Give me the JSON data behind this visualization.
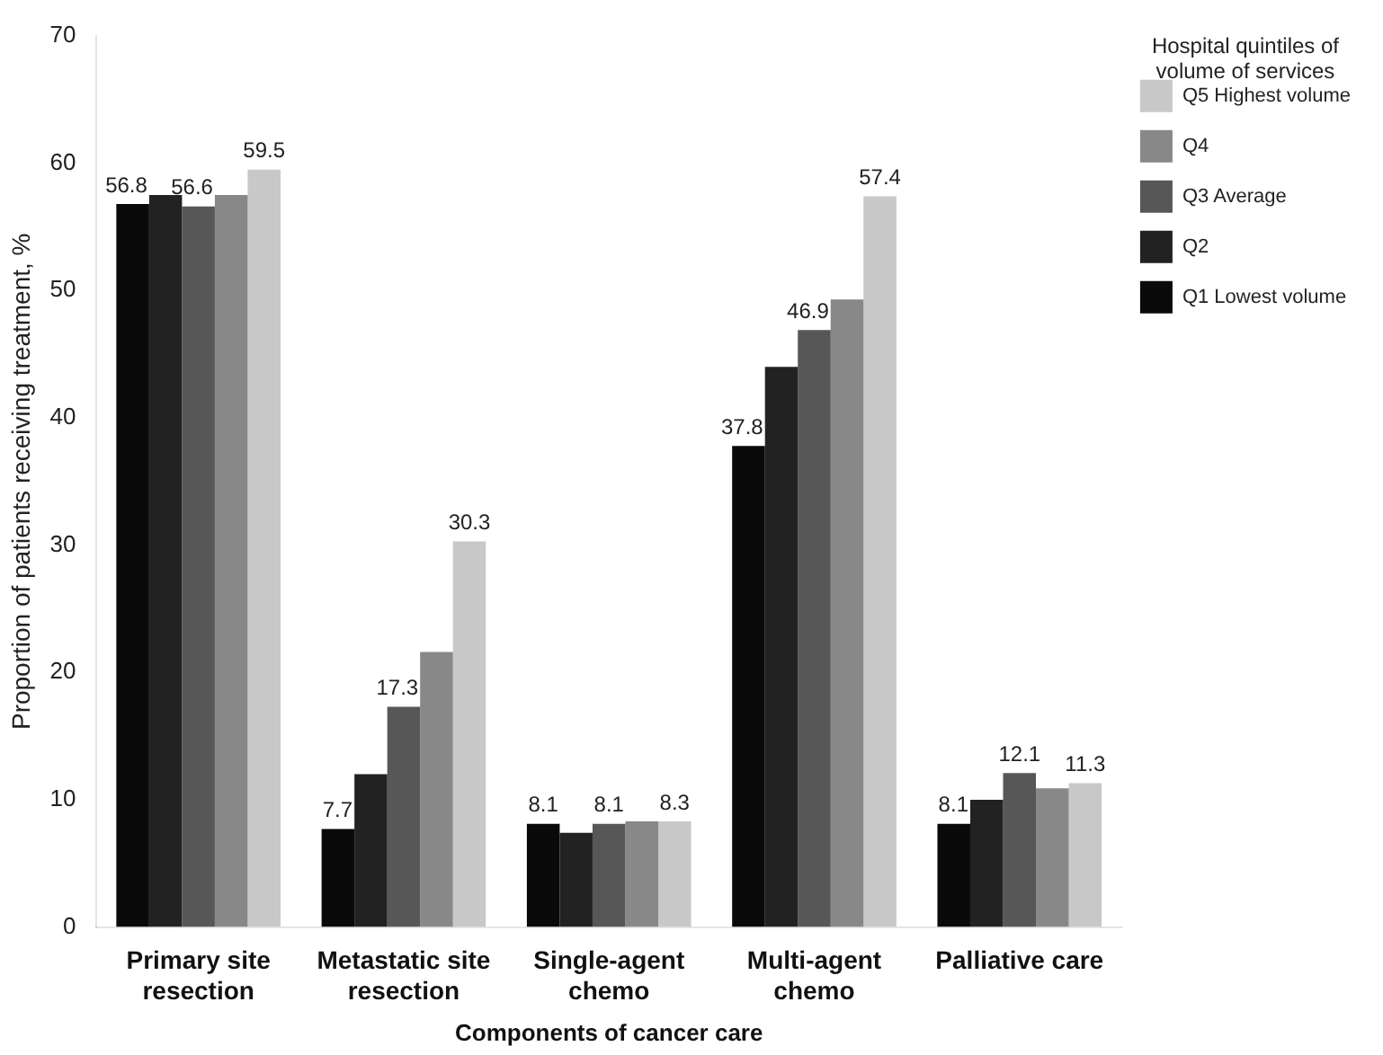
{
  "chart_data": {
    "type": "bar",
    "xlabel": "Components of cancer care",
    "ylabel": "Proportion of patients receiving treatment, %",
    "legend_title": "Hospital quintiles of\nvolume of services",
    "categories": [
      "Primary site\nresection",
      "Metastatic site\nresection",
      "Single-agent\nchemo",
      "Multi-agent\nchemo",
      "Palliative care"
    ],
    "series": [
      {
        "name": "Q1 Lowest volume",
        "color": "#0a0a0a",
        "values": [
          56.8,
          7.7,
          8.1,
          37.8,
          8.1
        ],
        "value_labels": [
          "56.8",
          "7.7",
          "8.1",
          "37.8",
          "8.1"
        ]
      },
      {
        "name": "Q2",
        "color": "#222222",
        "values": [
          57.5,
          12.0,
          7.4,
          44.0,
          10.0
        ],
        "value_labels": [
          null,
          null,
          null,
          null,
          null
        ]
      },
      {
        "name": "Q3 Average",
        "color": "#575757",
        "values": [
          56.6,
          17.3,
          8.1,
          46.9,
          12.1
        ],
        "value_labels": [
          "56.6",
          "17.3",
          "8.1",
          "46.9",
          "12.1"
        ]
      },
      {
        "name": "Q4",
        "color": "#888888",
        "values": [
          57.5,
          21.6,
          8.3,
          49.3,
          10.9
        ],
        "value_labels": [
          null,
          null,
          null,
          null,
          null
        ]
      },
      {
        "name": "Q5 Highest volume",
        "color": "#c8c8c8",
        "values": [
          59.5,
          30.3,
          8.3,
          57.4,
          11.3
        ],
        "value_labels": [
          "59.5",
          "30.3",
          "8.3",
          "57.4",
          "11.3"
        ]
      }
    ],
    "ylim": [
      0,
      70
    ],
    "yticks": [
      0,
      10,
      20,
      30,
      40,
      50,
      60,
      70
    ],
    "grid": false,
    "legend": "top right"
  }
}
